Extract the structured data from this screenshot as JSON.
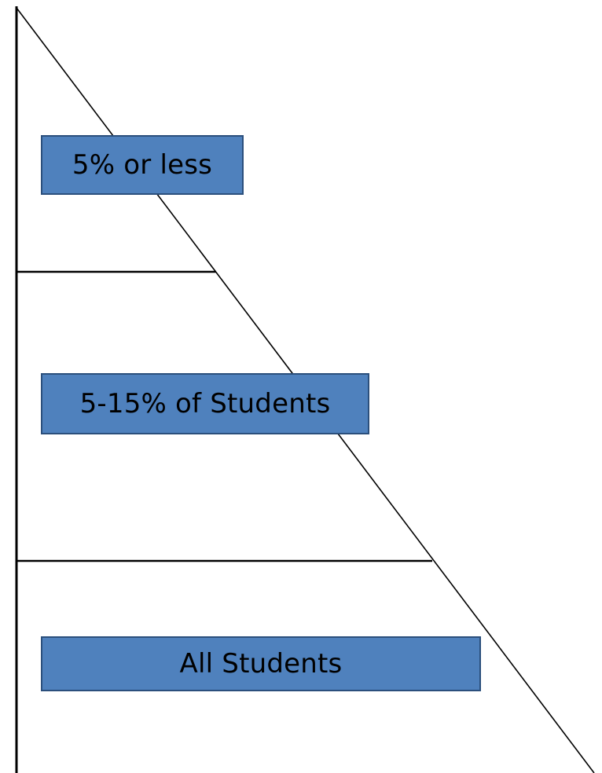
{
  "tiers": [
    {
      "label": "5% or less"
    },
    {
      "label": "5-15% of Students"
    },
    {
      "label": "All Students"
    }
  ],
  "colors": {
    "box_fill": "#4f81bd",
    "box_border": "#2b4f7c",
    "line": "#000000",
    "background": "#ffffff"
  }
}
